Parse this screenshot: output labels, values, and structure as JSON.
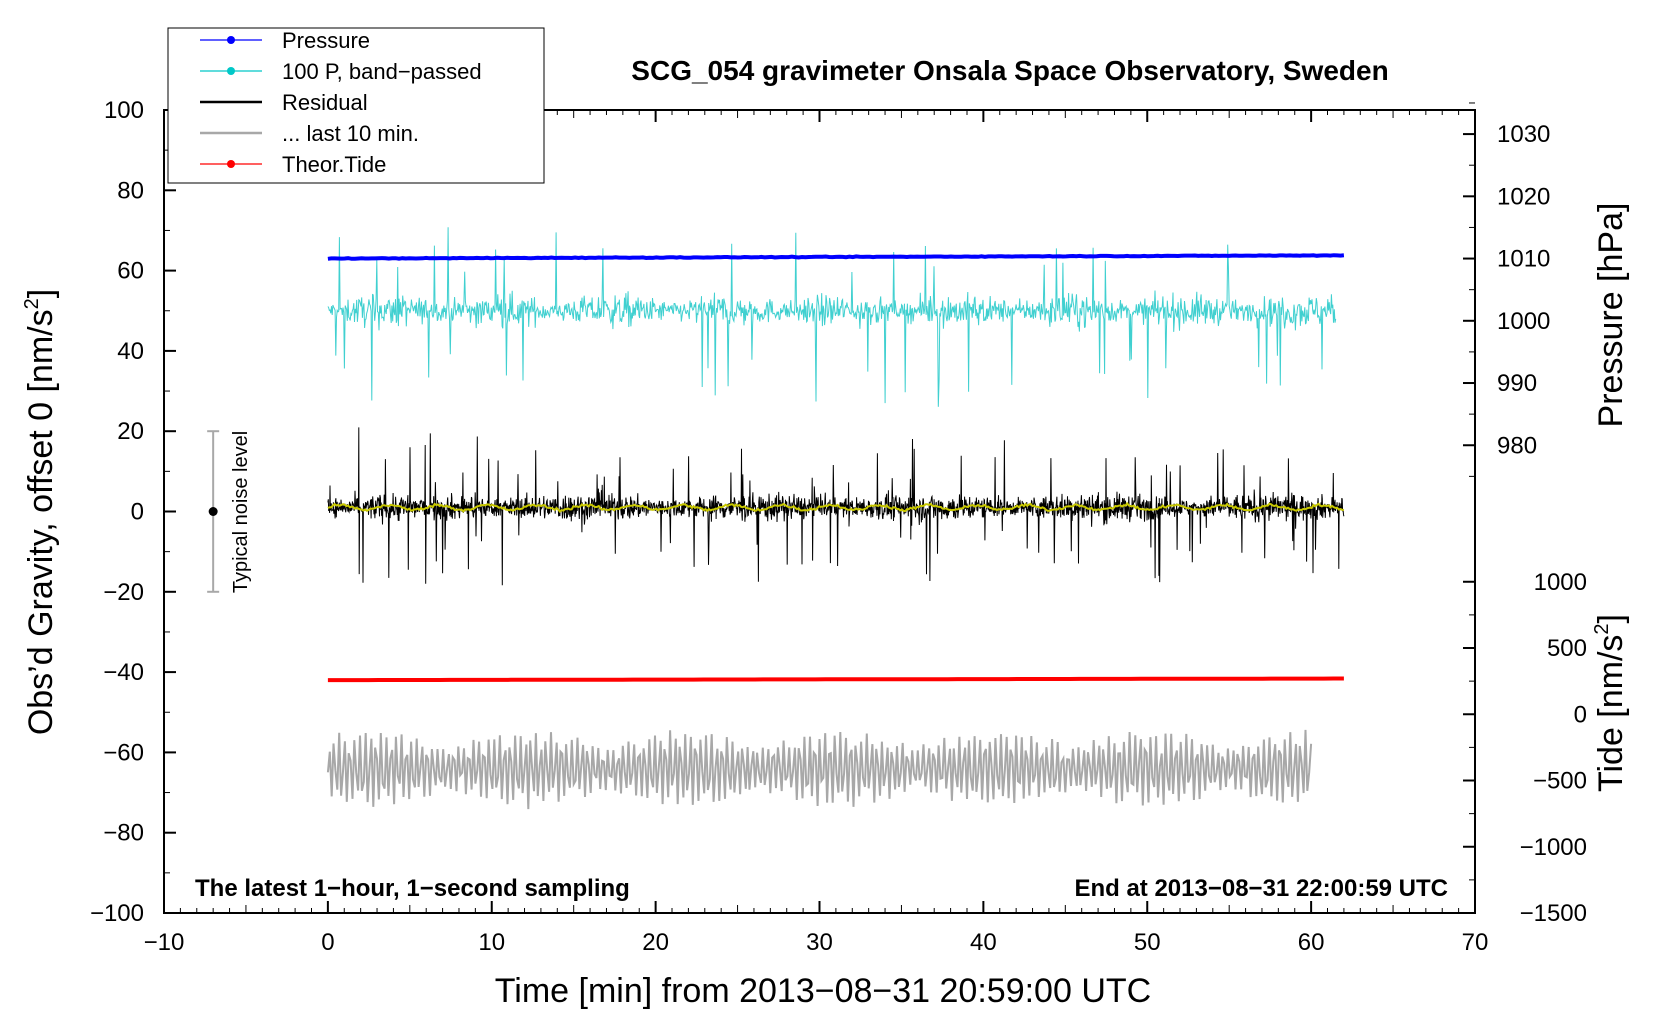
{
  "chart_data": {
    "type": "line",
    "title": "SCG_054 gravimeter Onsala Space Observatory, Sweden",
    "xlabel": "Time [min] from 2013−08−31 20:59:00 UTC",
    "ylabel_left_main": "Obs’d Gravity, offset 0 [nm/s",
    "ylabel_left_sup": "2",
    "ylabel_left_end": "]",
    "ylabel_right_pressure": "Pressure [hPa]",
    "ylabel_right_tide_main": "Tide [nm/s",
    "ylabel_right_tide_sup": "2",
    "ylabel_right_tide_end": "]",
    "xlim": [
      -10,
      70
    ],
    "ylim": [
      -100,
      100
    ],
    "x_ticks": [
      "−10",
      "0",
      "10",
      "20",
      "30",
      "40",
      "50",
      "60",
      "70"
    ],
    "y_ticks": [
      "−100",
      "−80",
      "−60",
      "−40",
      "−20",
      "0",
      "20",
      "40",
      "60",
      "80",
      "100"
    ],
    "pressure_ticks": [
      "980",
      "990",
      "1000",
      "1010",
      "1020",
      "1030"
    ],
    "tide_ticks": [
      "−1500",
      "−1000",
      "−500",
      "0",
      "500",
      "1000"
    ],
    "annotation_left": "The latest 1−hour, 1−second sampling",
    "annotation_right": "End at 2013−08−31 22:00:59 UTC",
    "noise_label": "Typical noise level",
    "noise_bar": {
      "x": -7,
      "center": 0,
      "low": -20,
      "high": 20
    },
    "legend": [
      {
        "label": "Pressure",
        "color": "#0000ff",
        "marker": true
      },
      {
        "label": "100 P, band−passed",
        "color": "#00c8c8",
        "marker": true
      },
      {
        "label": "Residual",
        "color": "#000000",
        "marker": false
      },
      {
        "label": "... last 10 min.",
        "color": "#a8a8a8",
        "marker": false
      },
      {
        "label": "Theor.Tide",
        "color": "#ff0000",
        "marker": true
      }
    ],
    "series": [
      {
        "name": "Pressure",
        "color": "#0000ff",
        "x_range": [
          0,
          62
        ],
        "value_hPa": [
          1010.6,
          1011.3
        ],
        "plotted_offset": 63
      },
      {
        "name": "100 P, band−passed",
        "color": "#40d0d0",
        "x_range": [
          0,
          61.5
        ],
        "baseline": 50,
        "amplitude": 12
      },
      {
        "name": "Residual",
        "color": "#000000",
        "x_range": [
          0,
          62
        ],
        "baseline": 1,
        "amplitude": 12
      },
      {
        "name": "Residual (smoothed)",
        "color": "#c8c800",
        "x_range": [
          0,
          62
        ],
        "baseline": 1
      },
      {
        "name": "Theor.Tide",
        "color": "#ff0000",
        "x_range": [
          0,
          62
        ],
        "y": [
          -42,
          -41.6
        ]
      },
      {
        "name": "... last 10 min.",
        "color": "#a8a8a8",
        "x_range": [
          0,
          60
        ],
        "baseline": -64,
        "amplitude": 9
      }
    ]
  }
}
